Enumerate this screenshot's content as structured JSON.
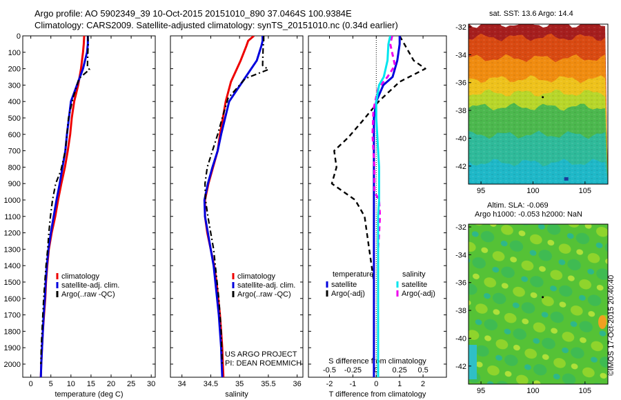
{
  "header": {
    "line1": "Argo profile: AO 5902349_39 10-Oct-2015 20151010_890 37.0464S 100.9384E",
    "line2": "Climatology: CARS2009. Satellite-adjusted climatology: synTS_20151010.nc (0.34d earlier)"
  },
  "right_labels": {
    "sst": "sat. SST: 13.6 Argo: 14.4",
    "sla1": "Altim. SLA: -0.069",
    "sla2": "Argo h1000: -0.053 h2000: NaN",
    "stamp": "©IMOS 17-Oct-2015 20:40:40"
  },
  "project": {
    "line1": "US ARGO PROJECT",
    "line2": "PI: DEAN ROEMMICH"
  },
  "colors": {
    "climatology": "#ee0000",
    "satellite": "#0000dd",
    "argo": "#000000",
    "satellite_s": "#00e5ee",
    "argo_s": "#ee00ee"
  },
  "chart_data": [
    {
      "type": "line",
      "xlabel": "temperature (deg C)",
      "xticks": [
        0,
        5,
        10,
        15,
        20,
        25,
        30
      ],
      "xlim": [
        -2,
        31
      ],
      "ylim": [
        0,
        2080
      ],
      "yticks": [
        0,
        100,
        200,
        300,
        400,
        500,
        600,
        700,
        800,
        900,
        1000,
        1100,
        1200,
        1300,
        1400,
        1500,
        1600,
        1700,
        1800,
        1900,
        2000
      ],
      "y_reversed": true,
      "legend": [
        "climatology",
        "satellite-adj. clim.",
        "Argo(..raw -QC)"
      ],
      "series": [
        {
          "name": "climatology",
          "x": [
            13.3,
            13.2,
            13.0,
            12.5,
            11.8,
            10.8,
            10.2,
            9.8,
            9.2,
            8.5,
            7.6,
            6.8,
            6.1,
            5.2,
            4.5,
            4.1,
            3.8,
            3.6,
            3.3,
            3.0,
            2.8,
            2.6,
            2.5
          ],
          "y": [
            0,
            50,
            100,
            200,
            300,
            400,
            500,
            600,
            700,
            800,
            900,
            1000,
            1100,
            1200,
            1300,
            1400,
            1500,
            1600,
            1700,
            1800,
            1900,
            2000,
            2080
          ]
        },
        {
          "name": "satellite-adj. clim.",
          "x": [
            14.2,
            14.2,
            14.0,
            13.0,
            11.5,
            10.0,
            9.5,
            9.0,
            8.6,
            7.9,
            7.2,
            6.4,
            5.7,
            5.0,
            4.4,
            4.0,
            3.7,
            3.5,
            3.2,
            3.0,
            2.8,
            2.6,
            2.5
          ],
          "y": [
            0,
            50,
            100,
            200,
            300,
            400,
            500,
            600,
            700,
            800,
            900,
            1000,
            1100,
            1200,
            1300,
            1400,
            1500,
            1600,
            1700,
            1800,
            1900,
            2000,
            2080
          ]
        },
        {
          "name": "Argo(..raw -QC)",
          "x": [
            14.2,
            14.3,
            14.2,
            14.1,
            14.6,
            12.0,
            10.5,
            9.4,
            9.0,
            8.6,
            7.5,
            6.2,
            5.4,
            4.9,
            4.5,
            4.2,
            3.8,
            3.5,
            3.2,
            3.0,
            2.8,
            2.6,
            2.5
          ],
          "y": [
            0,
            50,
            100,
            190,
            205,
            260,
            380,
            500,
            600,
            700,
            820,
            900,
            1000,
            1100,
            1200,
            1300,
            1400,
            1500,
            1600,
            1700,
            1800,
            1900,
            2000
          ]
        }
      ]
    },
    {
      "type": "line",
      "xlabel": "salinity",
      "xticks": [
        34,
        34.5,
        35,
        35.5,
        36
      ],
      "xlim": [
        33.8,
        36.1
      ],
      "ylim": [
        0,
        2080
      ],
      "yticks": [
        0,
        100,
        200,
        300,
        400,
        500,
        600,
        700,
        800,
        900,
        1000,
        1100,
        1200,
        1300,
        1400,
        1500,
        1600,
        1700,
        1800,
        1900,
        2000
      ],
      "y_reversed": true,
      "legend": [
        "climatology",
        "satellite-adj. clim.",
        "Argo(..raw -QC)"
      ],
      "series": [
        {
          "name": "climatology",
          "x": [
            35.25,
            35.15,
            35.12,
            35.02,
            34.85,
            34.76,
            34.71,
            34.66,
            34.62,
            34.54,
            34.46,
            34.4,
            34.4,
            34.44,
            34.5,
            34.56,
            34.6,
            34.63,
            34.66,
            34.68,
            34.7,
            34.71,
            34.72
          ],
          "y": [
            0,
            30,
            60,
            150,
            280,
            400,
            500,
            600,
            700,
            800,
            900,
            1000,
            1100,
            1200,
            1300,
            1400,
            1500,
            1600,
            1700,
            1800,
            1900,
            2000,
            2080
          ]
        },
        {
          "name": "satellite-adj. clim.",
          "x": [
            35.4,
            35.4,
            35.38,
            35.3,
            35.05,
            34.82,
            34.75,
            34.68,
            34.62,
            34.53,
            34.45,
            34.39,
            34.4,
            34.45,
            34.5,
            34.55,
            34.58,
            34.61,
            34.64,
            34.66,
            34.68,
            34.69,
            34.7
          ],
          "y": [
            0,
            30,
            60,
            150,
            280,
            400,
            500,
            600,
            700,
            800,
            900,
            1000,
            1100,
            1200,
            1300,
            1400,
            1500,
            1600,
            1700,
            1800,
            1900,
            2000,
            2080
          ]
        },
        {
          "name": "Argo(..raw -QC)",
          "x": [
            35.42,
            35.42,
            35.41,
            35.4,
            35.5,
            35.1,
            34.8,
            34.7,
            34.62,
            34.53,
            34.44,
            34.4,
            34.41,
            34.45,
            34.5,
            34.55,
            34.58,
            34.61,
            34.64,
            34.66,
            34.68,
            34.69,
            34.7
          ],
          "y": [
            0,
            30,
            60,
            180,
            205,
            260,
            380,
            500,
            600,
            700,
            800,
            900,
            1000,
            1100,
            1200,
            1300,
            1400,
            1500,
            1600,
            1700,
            1800,
            1900,
            2000
          ]
        }
      ],
      "annotation": [
        "US ARGO PROJECT",
        "PI: DEAN ROEMMICH"
      ]
    },
    {
      "type": "line",
      "xlabel": "T difference from climatology",
      "xticks": [
        -2,
        -1,
        0,
        1,
        2
      ],
      "xlim": [
        -2.9,
        3.0
      ],
      "x2label": "S difference from climatology",
      "x2ticks": [
        -0.5,
        -0.25,
        0,
        0.25,
        0.5
      ],
      "x2lim": [
        -0.725,
        0.75
      ],
      "ylim": [
        0,
        2080
      ],
      "y_reversed": true,
      "legend_titles": [
        "temperature",
        "salinity"
      ],
      "legend": [
        "satellite",
        "Argo(-adj)",
        "satellite",
        "Argo(-adj)"
      ],
      "series": [
        {
          "name": "satellite",
          "quantity": "T",
          "x": [
            1.0,
            1.0,
            0.9,
            0.7,
            0.3,
            0.0,
            -0.1,
            -0.1,
            -0.1,
            -0.1,
            -0.1,
            -0.1,
            -0.1,
            -0.1,
            -0.1,
            -0.1,
            -0.1,
            -0.1,
            -0.1,
            -0.1,
            -0.1,
            -0.1,
            -0.1
          ],
          "y": [
            0,
            50,
            150,
            250,
            300,
            400,
            500,
            600,
            700,
            800,
            900,
            1000,
            1100,
            1200,
            1300,
            1400,
            1500,
            1600,
            1700,
            1800,
            1900,
            2000,
            2080
          ]
        },
        {
          "name": "Argo(-adj)",
          "quantity": "T",
          "x": [
            1.0,
            1.2,
            1.6,
            2.1,
            1.0,
            0.1,
            -0.6,
            -1.2,
            -1.8,
            -1.7,
            -1.9,
            -0.9,
            -0.5,
            -0.4,
            -0.3,
            -0.2,
            -0.1,
            -0.1,
            -0.1,
            -0.1,
            -0.1,
            -0.1,
            -0.1
          ],
          "y": [
            0,
            50,
            150,
            200,
            280,
            400,
            520,
            620,
            700,
            800,
            900,
            1000,
            1100,
            1200,
            1300,
            1400,
            1500,
            1600,
            1700,
            1800,
            1900,
            2000,
            2080
          ]
        },
        {
          "name": "satellite",
          "quantity": "S",
          "x": [
            0.15,
            0.13,
            0.12,
            0.08,
            0.03,
            0.0,
            0.0,
            0.01,
            0.02,
            0.03,
            0.03,
            0.03,
            0.02,
            0.02,
            0.02,
            0.02,
            0.02,
            0.02,
            0.02,
            0.02,
            0.02,
            0.02,
            0.02
          ],
          "y": [
            0,
            50,
            150,
            250,
            300,
            400,
            500,
            600,
            700,
            800,
            900,
            1000,
            1100,
            1200,
            1300,
            1400,
            1500,
            1600,
            1700,
            1800,
            1900,
            2000,
            2080
          ]
        },
        {
          "name": "Argo(-adj)",
          "quantity": "S",
          "x": [
            0.17,
            0.15,
            0.2,
            0.12,
            0.02,
            -0.03,
            -0.04,
            -0.03,
            -0.02,
            -0.02,
            -0.02,
            0.03,
            0.04,
            0.03,
            0.02,
            0.02,
            0.02,
            0.02,
            0.02,
            0.02,
            0.02,
            0.02,
            0.02
          ],
          "y": [
            0,
            50,
            180,
            250,
            320,
            450,
            600,
            700,
            800,
            900,
            950,
            1000,
            1100,
            1200,
            1300,
            1400,
            1500,
            1600,
            1700,
            1800,
            1900,
            2000,
            2080
          ]
        }
      ]
    },
    {
      "type": "heatmap",
      "title": "sat. SST: 13.6 Argo: 14.4",
      "xticks": [
        95,
        100,
        105
      ],
      "yticks": [
        -32,
        -34,
        -36,
        -38,
        -40,
        -42
      ],
      "xlim": [
        93.8,
        107.2
      ],
      "ylim": [
        -43.3,
        -31.8
      ],
      "bands": [
        {
          "lat": -32,
          "color": "#a51e1e"
        },
        {
          "lat": -33.5,
          "color": "#d94a12"
        },
        {
          "lat": -35,
          "color": "#f08c10"
        },
        {
          "lat": -36.5,
          "color": "#eec21c"
        },
        {
          "lat": -37.5,
          "color": "#b8d62a"
        },
        {
          "lat": -38.5,
          "color": "#4cb84e"
        },
        {
          "lat": -40.5,
          "color": "#2fba9a"
        },
        {
          "lat": -42.5,
          "color": "#1fb8c8"
        }
      ]
    },
    {
      "type": "heatmap",
      "title": "Altim. SLA: -0.069",
      "xticks": [
        95,
        100,
        105
      ],
      "yticks": [
        -32,
        -34,
        -36,
        -38,
        -40,
        -42
      ],
      "xlim": [
        93.8,
        107.2
      ],
      "ylim": [
        -43.3,
        -31.8
      ]
    }
  ]
}
